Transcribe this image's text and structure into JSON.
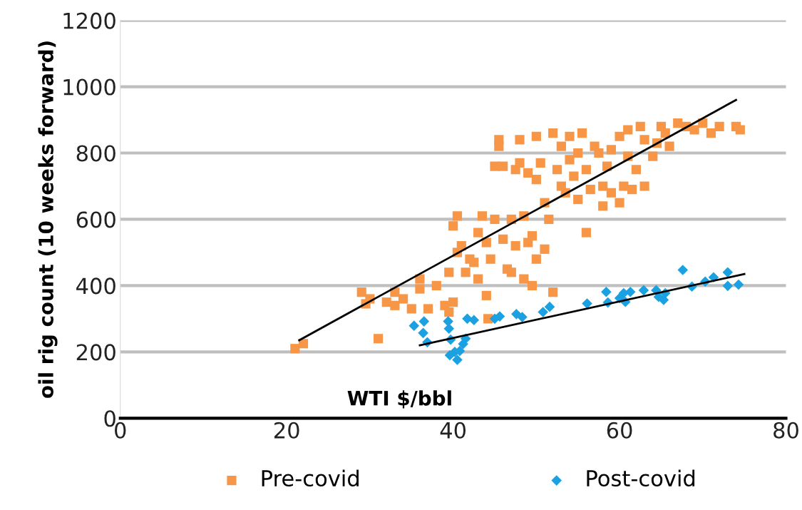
{
  "chart_data": {
    "type": "scatter",
    "xlabel": "WTI $/bbl",
    "ylabel": "oil rig count (10 weeks forward)",
    "xlim": [
      0,
      80
    ],
    "xticks": [
      0,
      20,
      40,
      60,
      80
    ],
    "ylim": [
      0,
      1200
    ],
    "yticks": [
      0,
      200,
      400,
      600,
      800,
      1000,
      1200
    ],
    "grid": "y",
    "legend": "bottom",
    "series": [
      {
        "name": "Pre-covid",
        "color": "#f79646",
        "marker": "square",
        "x": [
          21,
          22,
          29,
          29.5,
          30,
          31,
          32,
          33,
          33,
          34,
          35,
          36,
          36,
          37,
          38,
          39,
          39.5,
          40,
          39.5,
          40.5,
          40,
          40.5,
          41,
          41.5,
          42,
          42.5,
          43,
          43,
          43.5,
          44,
          44,
          44.5,
          45,
          44.2,
          45,
          45.5,
          45.5,
          46,
          46,
          46.5,
          47,
          47,
          47.5,
          47.5,
          48,
          48,
          48.5,
          48.5,
          49,
          49,
          49.5,
          49.5,
          50,
          50,
          50,
          50.5,
          51,
          51,
          51.5,
          52,
          52,
          52.5,
          53,
          53,
          53.5,
          54,
          54,
          54.5,
          55,
          55,
          55.5,
          56,
          56,
          56.5,
          57,
          57.5,
          58,
          58,
          58.5,
          59,
          59,
          60,
          60,
          60.5,
          61,
          61,
          61.5,
          62,
          62.5,
          63,
          63,
          64,
          64.5,
          65,
          65.5,
          66,
          67,
          68,
          69,
          70,
          71,
          72,
          74,
          74.5
        ],
        "values": [
          210,
          225,
          380,
          345,
          360,
          240,
          350,
          380,
          340,
          360,
          330,
          420,
          390,
          330,
          400,
          340,
          320,
          350,
          440,
          500,
          580,
          610,
          520,
          440,
          480,
          470,
          420,
          560,
          610,
          530,
          370,
          480,
          600,
          300,
          760,
          840,
          820,
          760,
          540,
          450,
          440,
          600,
          520,
          750,
          840,
          770,
          610,
          420,
          530,
          740,
          550,
          400,
          720,
          480,
          850,
          770,
          650,
          510,
          600,
          860,
          380,
          750,
          700,
          820,
          680,
          850,
          780,
          730,
          660,
          800,
          860,
          750,
          560,
          690,
          820,
          800,
          640,
          700,
          760,
          810,
          680,
          650,
          850,
          700,
          870,
          790,
          690,
          750,
          880,
          840,
          700,
          790,
          830,
          880,
          860,
          820,
          890,
          880,
          870,
          890,
          860,
          880,
          880,
          870
        ]
      },
      {
        "name": "Post-covid",
        "color": "#1ba1e2",
        "marker": "diamond",
        "x": [
          35.3,
          36.5,
          36.4,
          36.9,
          39.4,
          39.5,
          39.7,
          39.6,
          40.2,
          40.5,
          40.8,
          41.2,
          41.5,
          41.7,
          42.5,
          45,
          45.6,
          47.6,
          48.3,
          50.8,
          51.6,
          56.1,
          58.4,
          58.6,
          60,
          60.5,
          60.7,
          61.3,
          62.9,
          64.4,
          64.7,
          65.5,
          65.3,
          67.6,
          68.7,
          70.3,
          71.3,
          73,
          73,
          74.3
        ],
        "values": [
          279,
          292,
          257,
          229,
          292,
          270,
          237,
          190,
          200,
          176,
          203,
          224,
          240,
          300,
          296,
          300,
          307,
          314,
          305,
          320,
          336,
          346,
          381,
          349,
          362,
          377,
          351,
          381,
          386,
          386,
          366,
          377,
          357,
          447,
          397,
          412,
          425,
          440,
          399,
          403
        ]
      },
      {
        "type": "line",
        "color": "#000000",
        "marker": "none",
        "x": [
          21.5,
          74
        ],
        "values": [
          235,
          960
        ]
      },
      {
        "type": "line",
        "color": "#000000",
        "marker": "none",
        "x": [
          36,
          75
        ],
        "values": [
          220,
          435
        ]
      }
    ]
  }
}
